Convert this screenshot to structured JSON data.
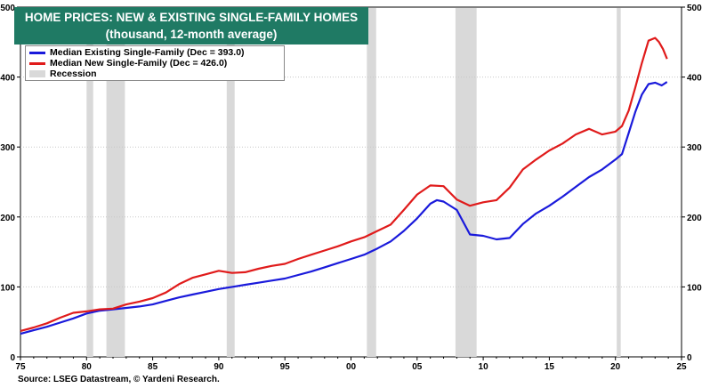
{
  "chart_data": {
    "type": "line",
    "title": "HOME PRICES: NEW & EXISTING SINGLE-FAMILY HOMES",
    "subtitle": "(thousand, 12-month average)",
    "source": "Source: LSEG Datastream, © Yardeni Research.",
    "xlim": [
      1975,
      2025
    ],
    "ylim": [
      0,
      500
    ],
    "x_ticks": [
      1975,
      1980,
      1985,
      1990,
      1995,
      2000,
      2005,
      2010,
      2015,
      2020,
      2025
    ],
    "x_tick_labels": [
      "75",
      "80",
      "85",
      "90",
      "95",
      "00",
      "05",
      "10",
      "15",
      "20",
      "25"
    ],
    "y_ticks": [
      0,
      100,
      200,
      300,
      400,
      500
    ],
    "y_tick_labels": [
      "0",
      "100",
      "200",
      "300",
      "400",
      "500"
    ],
    "grid": true,
    "legend_position": "top-left",
    "recessions": [
      {
        "start": 1980.0,
        "end": 1980.5
      },
      {
        "start": 1981.5,
        "end": 1982.9
      },
      {
        "start": 1990.6,
        "end": 1991.2
      },
      {
        "start": 2001.2,
        "end": 2001.9
      },
      {
        "start": 2007.9,
        "end": 2009.5
      },
      {
        "start": 2020.1,
        "end": 2020.4
      }
    ],
    "recession_label": "Recession",
    "recession_color": "#d9d9d9",
    "series": [
      {
        "name": "Median Existing Single-Family (Dec = 393.0)",
        "color": "#1a1adb",
        "x": [
          1975,
          1976,
          1977,
          1978,
          1979,
          1980,
          1981,
          1982,
          1983,
          1984,
          1985,
          1986,
          1987,
          1988,
          1989,
          1990,
          1991,
          1992,
          1993,
          1994,
          1995,
          1996,
          1997,
          1998,
          1999,
          2000,
          2001,
          2002,
          2003,
          2004,
          2005,
          2006,
          2006.5,
          2007,
          2008,
          2009,
          2010,
          2011,
          2012,
          2013,
          2014,
          2015,
          2016,
          2017,
          2018,
          2019,
          2020,
          2020.5,
          2021,
          2021.5,
          2022,
          2022.5,
          2023,
          2023.5,
          2023.9
        ],
        "y": [
          33,
          38,
          43,
          49,
          55,
          62,
          66,
          68,
          70,
          72,
          75,
          80,
          85,
          89,
          93,
          97,
          100,
          103,
          106,
          109,
          112,
          117,
          122,
          128,
          134,
          140,
          146,
          155,
          165,
          180,
          198,
          219,
          224,
          222,
          210,
          175,
          173,
          168,
          170,
          190,
          205,
          216,
          229,
          243,
          257,
          268,
          282,
          290,
          320,
          350,
          375,
          390,
          392,
          388,
          393
        ]
      },
      {
        "name": "Median New Single-Family (Dec = 426.0)",
        "color": "#e01b1b",
        "x": [
          1975,
          1976,
          1977,
          1978,
          1979,
          1980,
          1981,
          1982,
          1983,
          1984,
          1985,
          1986,
          1987,
          1988,
          1989,
          1990,
          1991,
          1992,
          1993,
          1994,
          1995,
          1996,
          1997,
          1998,
          1999,
          2000,
          2001,
          2002,
          2003,
          2004,
          2005,
          2006,
          2007,
          2008,
          2009,
          2010,
          2011,
          2012,
          2013,
          2014,
          2015,
          2016,
          2017,
          2018,
          2019,
          2020,
          2020.5,
          2021,
          2021.5,
          2022,
          2022.5,
          2023,
          2023.3,
          2023.6,
          2023.9
        ],
        "y": [
          37,
          42,
          48,
          56,
          63,
          65,
          68,
          69,
          75,
          79,
          84,
          92,
          104,
          113,
          118,
          123,
          120,
          121,
          126,
          130,
          133,
          140,
          146,
          152,
          158,
          165,
          171,
          180,
          189,
          210,
          232,
          245,
          244,
          225,
          216,
          221,
          224,
          242,
          268,
          282,
          295,
          305,
          318,
          326,
          318,
          322,
          330,
          352,
          385,
          420,
          452,
          456,
          450,
          440,
          426
        ]
      }
    ]
  }
}
